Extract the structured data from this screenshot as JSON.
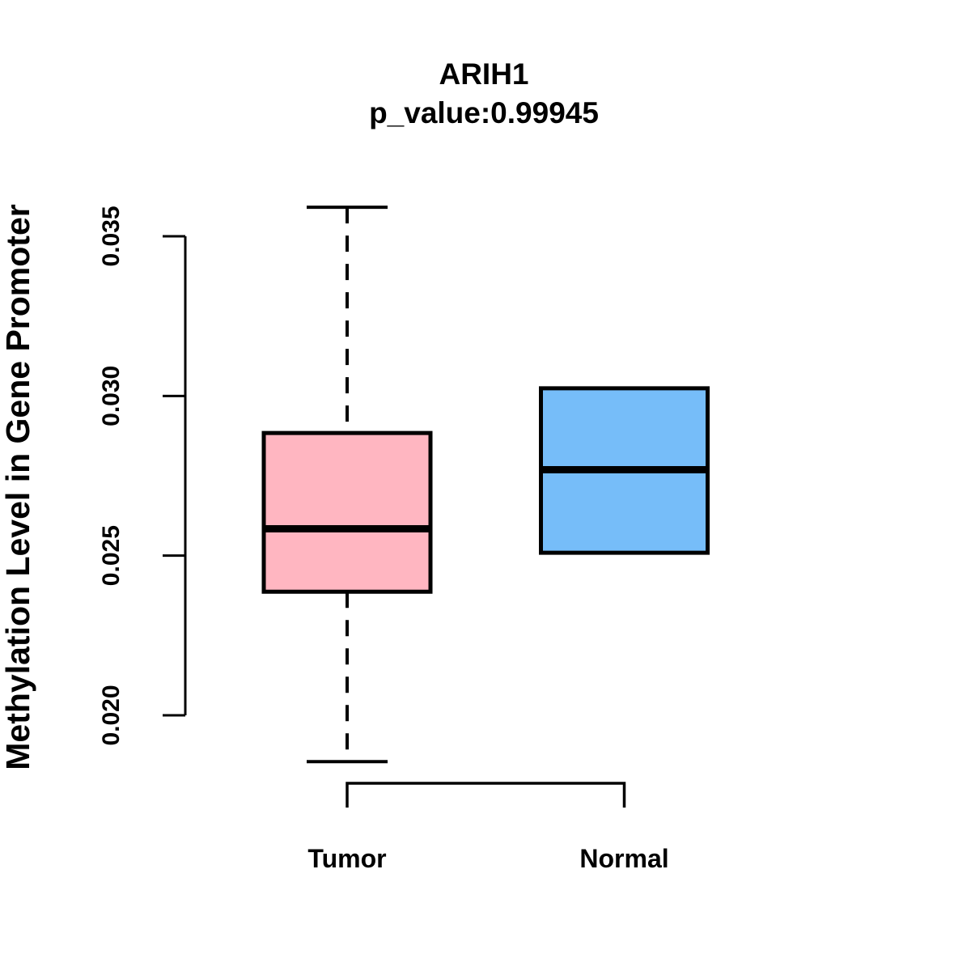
{
  "chart_data": {
    "type": "boxplot",
    "title": "ARIH1",
    "subtitle": "p_value:0.99945",
    "ylabel": "Methylation Level in Gene Promoter",
    "xlabel": "",
    "categories": [
      "Tumor",
      "Normal"
    ],
    "yticks": [
      0.02,
      0.025,
      0.03,
      0.035
    ],
    "ytick_labels": [
      "0.020",
      "0.025",
      "0.030",
      "0.035"
    ],
    "ylim": [
      0.0186,
      0.0359
    ],
    "grid": false,
    "legend": false,
    "colors": {
      "tumor_fill": "#FFB6C1",
      "normal_fill": "#76BDF9",
      "line": "#000000",
      "background": "#FFFFFF"
    },
    "series": [
      {
        "name": "Tumor",
        "fill": "#FFB6C1",
        "whisker_low": 0.01855,
        "q1": 0.02387,
        "median": 0.02584,
        "q3": 0.02884,
        "whisker_high": 0.03591
      },
      {
        "name": "Normal",
        "fill": "#76BDF9",
        "whisker_low": 0.02509,
        "q1": 0.02509,
        "median": 0.02769,
        "q3": 0.03024,
        "whisker_high": 0.03024
      }
    ]
  }
}
